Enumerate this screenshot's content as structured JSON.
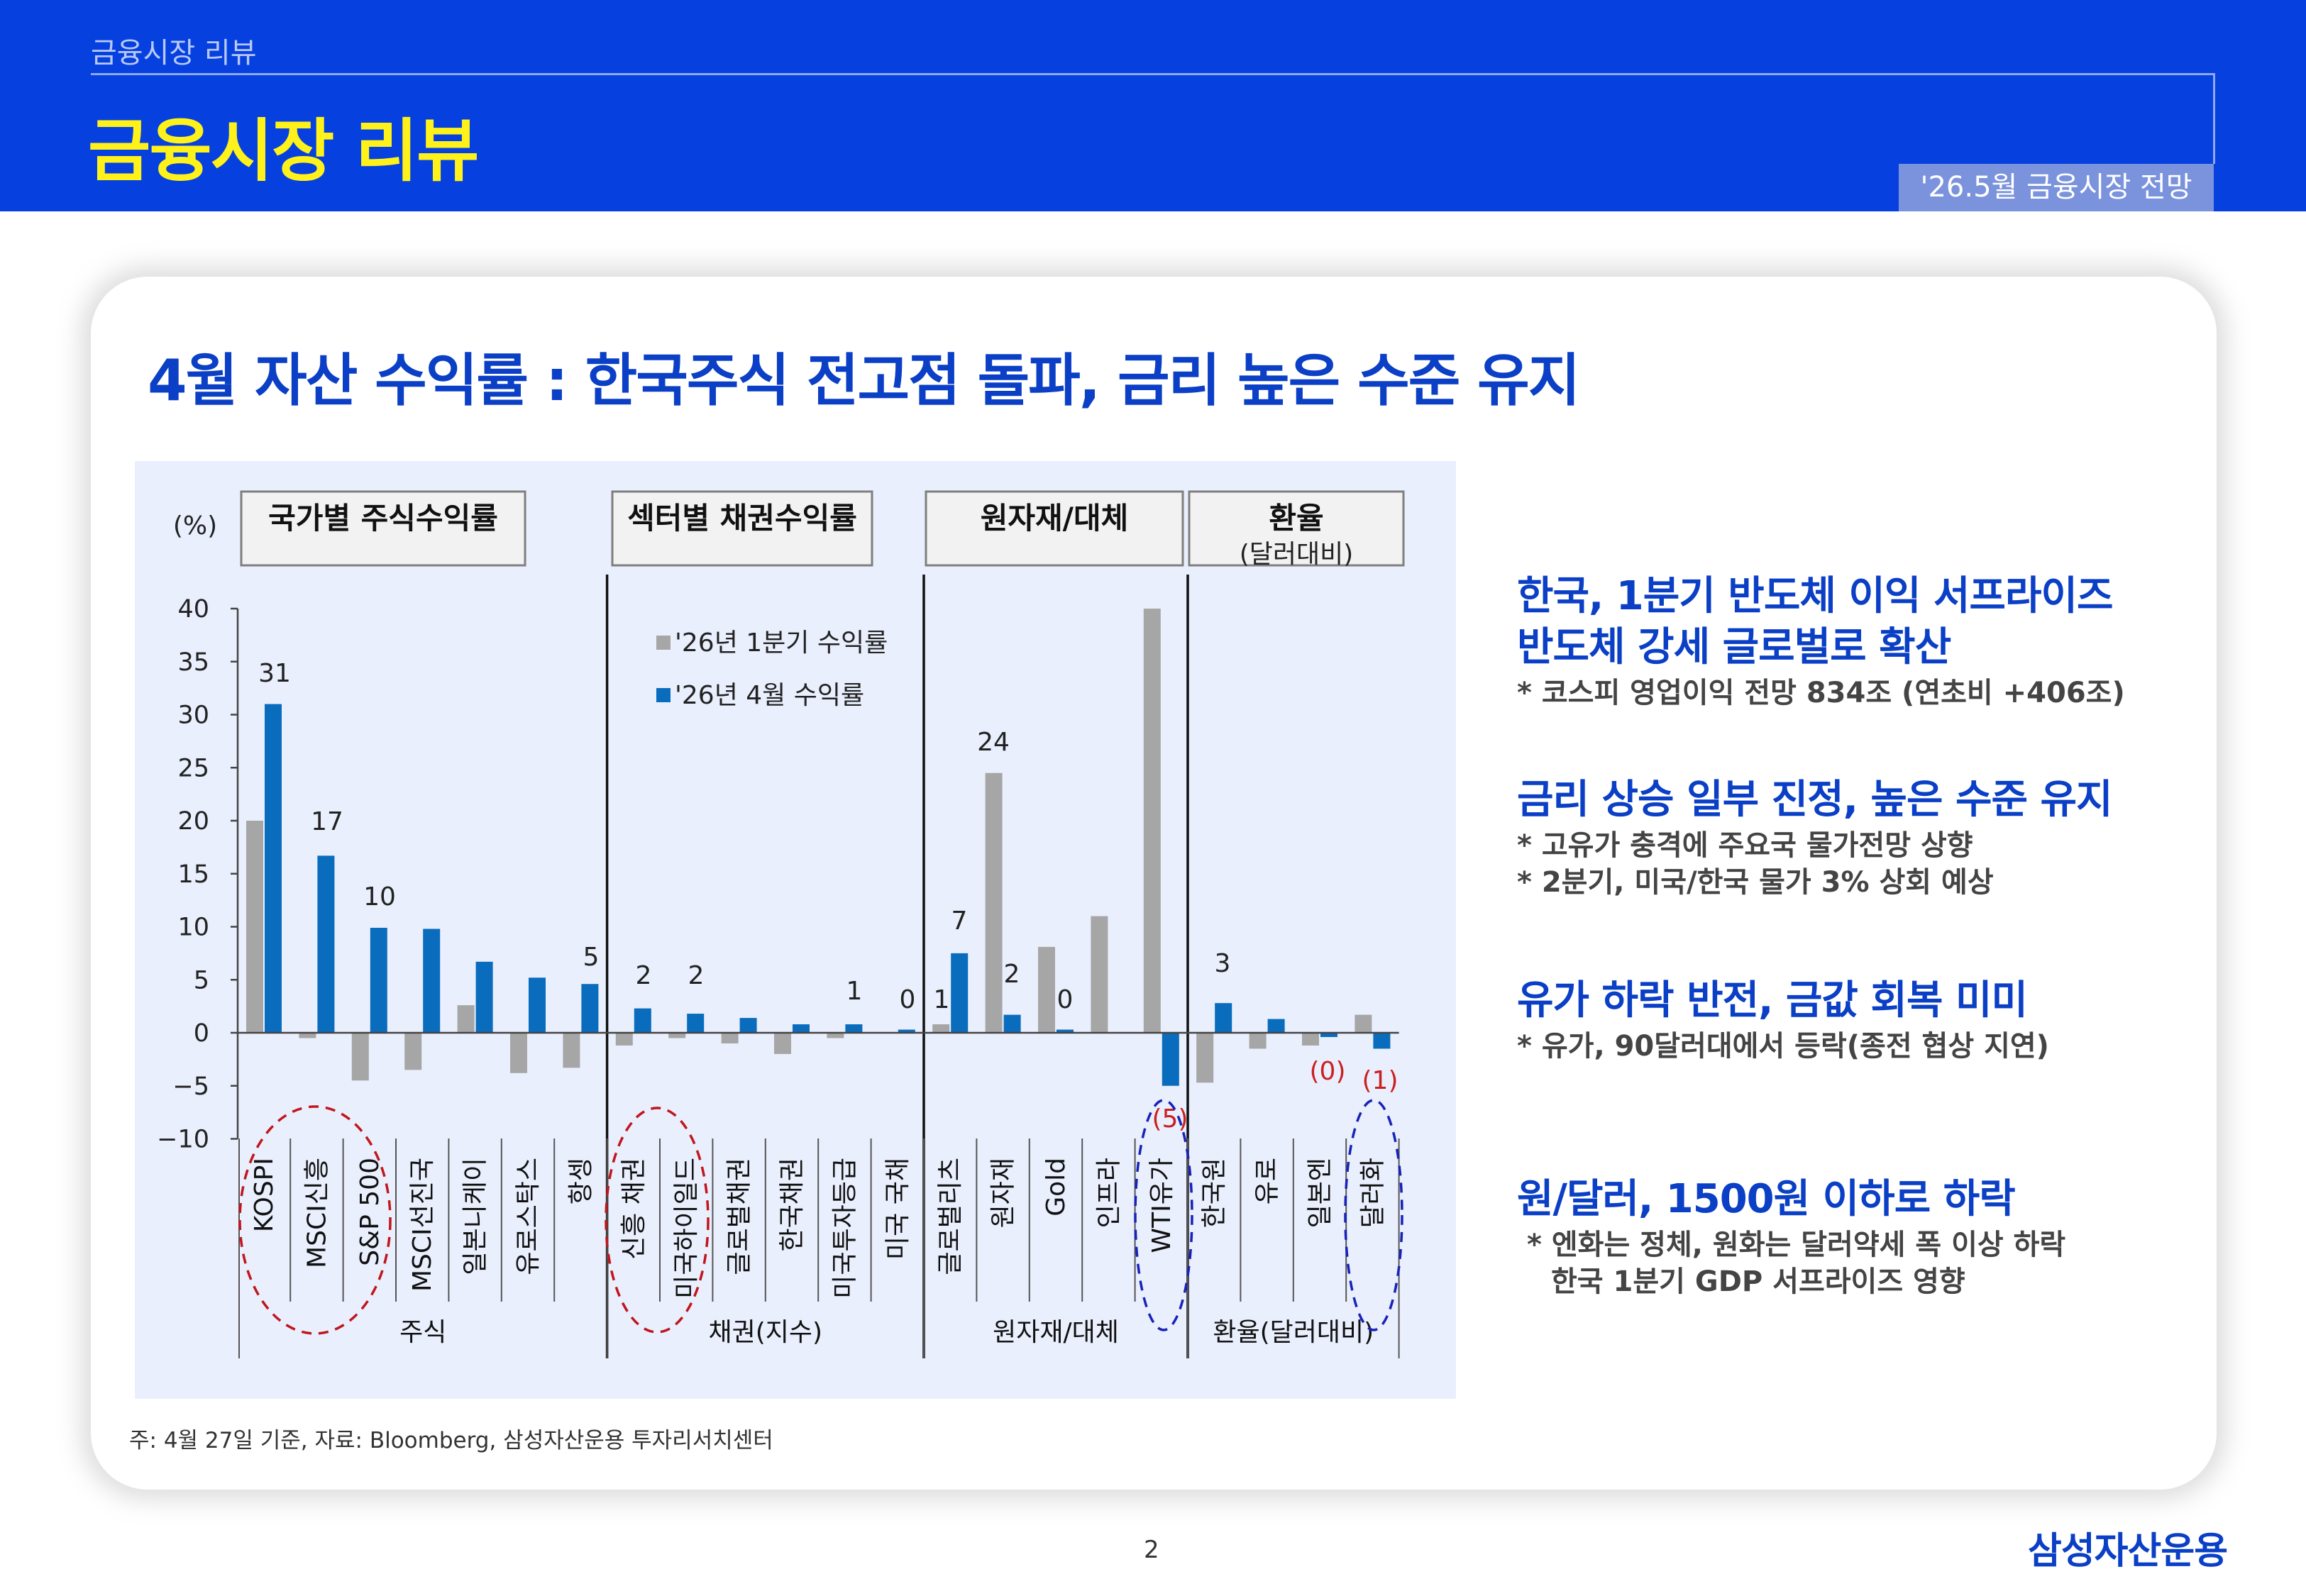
{
  "header": {
    "breadcrumb": "금융시장 리뷰",
    "title": "금융시장 리뷰",
    "tag": "'26.5월 금융시장 전망"
  },
  "main_title": "4월 자산 수익률 : 한국주식 전고점 돌파, 금리 높은 수준 유지",
  "chart_data": {
    "type": "bar",
    "ylabel": "(%)",
    "ylim": [
      -10,
      40
    ],
    "yticks": [
      "40",
      "35",
      "30",
      "25",
      "20",
      "15",
      "10",
      "5",
      "0",
      "−5",
      "−10"
    ],
    "ytick_values": [
      40,
      35,
      30,
      25,
      20,
      15,
      10,
      5,
      0,
      -5,
      -10
    ],
    "legend": {
      "position": "top-center (sector bond panel)"
    },
    "series": [
      {
        "name": "'26년 1분기 수익률",
        "color": "#a6a6a6",
        "values": [
          20,
          -0.5,
          -4.5,
          -3.5,
          2.6,
          -3.8,
          -3.3,
          -1.2,
          -0.5,
          -1.0,
          -2.0,
          -0.5,
          0.0,
          0.8,
          24.5,
          8.1,
          11.0,
          40.0,
          -4.7,
          -1.5,
          -1.2,
          1.7
        ]
      },
      {
        "name": "'26년 4월 수익률",
        "color": "#0a6cbc",
        "values": [
          31,
          16.7,
          9.9,
          9.8,
          6.7,
          5.2,
          4.6,
          2.3,
          1.8,
          1.4,
          0.8,
          0.8,
          0.3,
          7.5,
          1.7,
          0.3,
          0.0,
          -5.0,
          2.8,
          1.3,
          -0.4,
          -1.5
        ]
      }
    ],
    "categories": [
      "KOSPI",
      "MSCI신흥",
      "S&P 500",
      "MSCI선진국",
      "일본니케이",
      "유로스탁스",
      "항셍",
      "신흥 채권",
      "미국하이일드",
      "글로벌채권",
      "한국채권",
      "미국투자등급",
      "미국 국채",
      "글로벌리츠",
      "원자재",
      "Gold",
      "인프라",
      "WTI유가",
      "한국원",
      "유로",
      "일본엔",
      "달러화"
    ],
    "groups": [
      {
        "box_title": "국가별 주식수익률",
        "box_sub": "",
        "axis_label": "주식"
      },
      {
        "box_title": "섹터별 채권수익률",
        "box_sub": "",
        "axis_label": "채권(지수)"
      },
      {
        "box_title": "원자재/대체",
        "box_sub": "",
        "axis_label": "원자재/대체"
      },
      {
        "box_title": "환율",
        "box_sub": "(달러대비)",
        "axis_label": "환율(달러대비)"
      }
    ],
    "data_labels": [
      {
        "category": "KOSPI",
        "text": "31"
      },
      {
        "category": "MSCI신흥",
        "text": "17"
      },
      {
        "category": "S&P 500",
        "text": "10"
      },
      {
        "category": "항셍",
        "text": "5"
      },
      {
        "category": "신흥 채권",
        "text": "2"
      },
      {
        "category": "미국하이일드",
        "text": "2"
      },
      {
        "category": "미국투자등급",
        "text": "1"
      },
      {
        "category": "미국 국채",
        "text": "0"
      },
      {
        "category": "글로벌리츠",
        "text": "1"
      },
      {
        "category": "글로벌리츠",
        "text": "7"
      },
      {
        "category": "원자재",
        "text": "24"
      },
      {
        "category": "원자재",
        "text": "2"
      },
      {
        "category": "Gold",
        "text": "0"
      },
      {
        "category": "WTI유가",
        "text": "(5)"
      },
      {
        "category": "한국원",
        "text": "3"
      },
      {
        "category": "일본엔",
        "text": "(0)"
      },
      {
        "category": "달러화",
        "text": "(1)"
      }
    ],
    "highlights": [
      {
        "categories": [
          "KOSPI",
          "MSCI신흥",
          "S&P 500"
        ],
        "color": "#c0161c",
        "style": "dashed-ellipse"
      },
      {
        "categories": [
          "신흥 채권",
          "미국하이일드"
        ],
        "color": "#c0161c",
        "style": "dashed-ellipse"
      },
      {
        "categories": [
          "WTI유가"
        ],
        "color": "#1822b8",
        "style": "dashed-ellipse"
      },
      {
        "categories": [
          "달러화"
        ],
        "color": "#1822b8",
        "style": "dashed-ellipse"
      }
    ]
  },
  "colors": {
    "header_bg": "#0641e0",
    "title_yellow": "#fff21a",
    "accent_blue": "#0a3fc6",
    "bar_gray": "#a6a6a6",
    "bar_blue": "#0a6cbc",
    "negative_label": "#cc2020"
  },
  "note": "주: 4월 27일 기준, 자료: Bloomberg, 삼성자산운용 투자리서치센터",
  "commentary": [
    {
      "headline_lines": [
        "한국, 1분기 반도체 이익 서프라이즈",
        "반도체 강세 글로벌로 확산"
      ],
      "detail_lines": [
        "* 코스피 영업이익 전망 834조 (연초비 +406조)"
      ]
    },
    {
      "headline_lines": [
        "금리 상승 일부 진정, 높은 수준 유지"
      ],
      "detail_lines": [
        "* 고유가 충격에 주요국 물가전망 상향",
        "* 2분기, 미국/한국 물가 3% 상회 예상"
      ]
    },
    {
      "headline_lines": [
        "유가 하락 반전, 금값 회복 미미"
      ],
      "detail_lines": [
        "* 유가, 90달러대에서 등락(종전 협상 지연)"
      ]
    },
    {
      "headline_lines": [
        "원/달러, 1500원 이하로 하락"
      ],
      "detail_lines": [
        "* 엔화는 정체, 원화는 달러약세 폭 이상 하락",
        "한국 1분기 GDP 서프라이즈 영향"
      ]
    }
  ],
  "footer": {
    "page_number": "2",
    "logo": "삼성자산운용"
  }
}
